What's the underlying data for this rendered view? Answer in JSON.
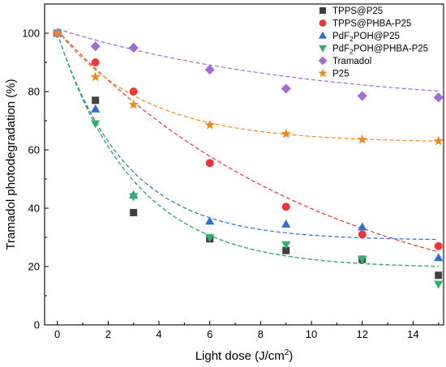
{
  "chart_data": {
    "type": "scatter",
    "title": "",
    "xlabel": "Light dose (J/cm",
    "xlabel_sup": "2",
    "xlabel_end": ")",
    "ylabel": "Tramadol photodegradation (%)",
    "xlim": [
      -0.5,
      15.2
    ],
    "ylim": [
      0,
      110
    ],
    "xticks": [
      0,
      2,
      4,
      6,
      8,
      10,
      12,
      14
    ],
    "yticks": [
      0,
      20,
      40,
      60,
      80,
      100
    ],
    "grid": false,
    "legend_position": "top-right",
    "series": [
      {
        "name": "TPPS@P25",
        "legend_parts": [
          {
            "t": "TPPS@P25"
          }
        ],
        "marker": "square",
        "color": "#404040",
        "x": [
          0,
          1.5,
          3,
          6,
          9,
          12,
          15
        ],
        "y": [
          100,
          77,
          38.5,
          29.5,
          25.5,
          22.5,
          17
        ],
        "fit": {
          "y0": 19.5,
          "A": 80.5,
          "k": 0.33
        }
      },
      {
        "name": "TPPS@PHBA-P25",
        "legend_parts": [
          {
            "t": "TPPS@PHBA-P25"
          }
        ],
        "marker": "circle",
        "color": "#ee3434",
        "x": [
          0,
          1.5,
          3,
          6,
          9,
          12,
          15
        ],
        "y": [
          100,
          90,
          80,
          55.5,
          40.5,
          31,
          27
        ],
        "fit": {
          "y0": 0,
          "A": 101,
          "k": 0.093
        }
      },
      {
        "name": "PdF2POH@P25",
        "legend_parts": [
          {
            "t": "PdF"
          },
          {
            "t": "2",
            "sub": true
          },
          {
            "t": "POH@P25"
          }
        ],
        "marker": "triangle-up",
        "color": "#2a6ed6",
        "x": [
          0,
          1.5,
          3,
          6,
          9,
          12,
          15
        ],
        "y": [
          100,
          74,
          44.5,
          35.5,
          34.5,
          33.5,
          23
        ],
        "fit": {
          "y0": 29,
          "A": 71,
          "k": 0.37
        }
      },
      {
        "name": "PdF2POH@PHBA-P25",
        "legend_parts": [
          {
            "t": "PdF"
          },
          {
            "t": "2",
            "sub": true
          },
          {
            "t": "POH@PHBA-P25"
          }
        ],
        "marker": "triangle-down",
        "color": "#2eb36e",
        "x": [
          0,
          1.5,
          3,
          6,
          9,
          12,
          15
        ],
        "y": [
          100,
          69,
          44,
          30,
          27.5,
          22.5,
          14
        ],
        "fit": {
          "y0": 19.5,
          "A": 80.5,
          "k": 0.33
        }
      },
      {
        "name": "Tramadol",
        "legend_parts": [
          {
            "t": "Tramadol"
          }
        ],
        "marker": "diamond",
        "color": "#a56ad8",
        "x": [
          0,
          1.5,
          3,
          6,
          9,
          12,
          15
        ],
        "y": [
          100,
          95.5,
          95,
          87.5,
          81,
          78.5,
          78
        ],
        "fit": {
          "y0": 74,
          "A": 27.5,
          "k": 0.1
        }
      },
      {
        "name": "P25",
        "legend_parts": [
          {
            "t": "P25"
          }
        ],
        "marker": "star",
        "color": "#f2891a",
        "x": [
          0,
          1.5,
          3,
          6,
          9,
          12,
          15
        ],
        "y": [
          100,
          85,
          75.5,
          68.5,
          65.5,
          63.5,
          63
        ],
        "fit": {
          "y0": 62.5,
          "A": 38.5,
          "k": 0.29
        }
      }
    ]
  }
}
